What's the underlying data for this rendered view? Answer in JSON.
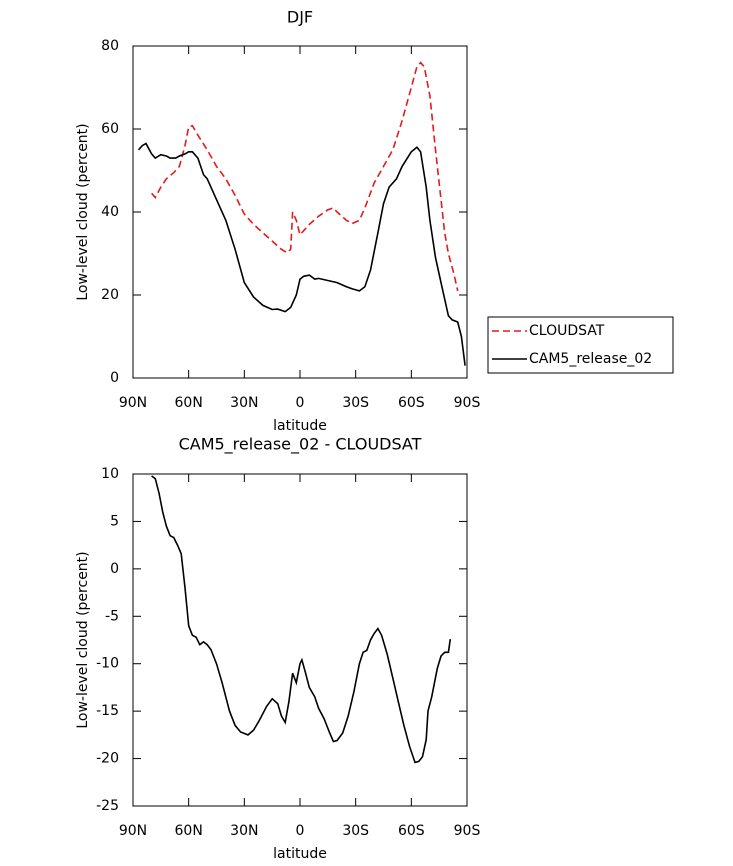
{
  "chart_data": [
    {
      "type": "line",
      "title": "DJF",
      "xlabel": "latitude",
      "ylabel": "Low-level cloud (percent)",
      "xlim": [
        90,
        -90
      ],
      "ylim": [
        0,
        80
      ],
      "xticks": [
        {
          "value": 90,
          "label": "90N"
        },
        {
          "value": 60,
          "label": "60N"
        },
        {
          "value": 30,
          "label": "30N"
        },
        0,
        {
          "value": -30,
          "label": "30S"
        },
        {
          "value": -60,
          "label": "60S"
        },
        {
          "value": -90,
          "label": "90S"
        }
      ],
      "yticks": [
        0,
        20,
        40,
        60,
        80
      ],
      "legend": "right",
      "series": [
        {
          "name": "CLOUDSAT",
          "color": "#e41a1c",
          "dash": "dashed",
          "x": [
            80,
            78,
            75,
            72,
            68,
            65,
            62,
            60,
            58,
            55,
            50,
            45,
            40,
            35,
            30,
            25,
            20,
            15,
            10,
            7,
            5,
            4,
            2,
            0,
            -2,
            -5,
            -10,
            -15,
            -18,
            -20,
            -25,
            -28,
            -32,
            -35,
            -40,
            -45,
            -50,
            -55,
            -60,
            -63,
            -65,
            -67,
            -70,
            -73,
            -76,
            -78,
            -80,
            -83,
            -85
          ],
          "values": [
            44.5,
            43.5,
            46,
            48,
            49.5,
            51,
            56,
            60.5,
            60.8,
            58.5,
            55,
            51,
            48,
            44,
            39.5,
            37,
            35,
            33,
            31,
            30.2,
            31,
            40,
            38,
            34.5,
            35.5,
            37,
            39,
            40.5,
            41,
            40,
            38,
            37.2,
            38,
            41,
            47,
            51,
            55,
            62,
            70,
            75,
            76,
            75,
            68,
            55,
            43,
            35,
            30,
            25,
            21
          ]
        },
        {
          "name": "CAM5_release_02",
          "color": "#000000",
          "dash": "solid",
          "x": [
            87,
            85,
            83,
            80,
            78,
            75,
            72,
            70,
            67,
            65,
            62,
            60,
            58,
            55,
            52,
            50,
            45,
            40,
            35,
            30,
            25,
            20,
            15,
            12,
            8,
            5,
            2,
            0,
            -2,
            -5,
            -8,
            -10,
            -15,
            -20,
            -25,
            -28,
            -32,
            -35,
            -38,
            -42,
            -45,
            -48,
            -52,
            -55,
            -60,
            -63,
            -65,
            -68,
            -70,
            -73,
            -76,
            -80,
            -82,
            -85,
            -87,
            -89
          ],
          "values": [
            55,
            56,
            56.5,
            54,
            53,
            53.8,
            53.5,
            53,
            53,
            53.5,
            54,
            54.5,
            54.5,
            53,
            49,
            48,
            43,
            38,
            31,
            23,
            19.5,
            17.5,
            16.5,
            16.6,
            16,
            17,
            20,
            23.8,
            24.5,
            24.8,
            23.8,
            24,
            23.5,
            23,
            22,
            21.5,
            21,
            22,
            26,
            35,
            42,
            46,
            48,
            51,
            54.5,
            55.6,
            54.5,
            46,
            38,
            29,
            23,
            15,
            14,
            13.5,
            10,
            3
          ]
        }
      ]
    },
    {
      "type": "line",
      "title": "CAM5_release_02 - CLOUDSAT",
      "xlabel": "latitude",
      "ylabel": "Low-level cloud (percent)",
      "xlim": [
        90,
        -90
      ],
      "ylim": [
        -25,
        10
      ],
      "xticks": [
        {
          "value": 90,
          "label": "90N"
        },
        {
          "value": 60,
          "label": "60N"
        },
        {
          "value": 30,
          "label": "30N"
        },
        0,
        {
          "value": -30,
          "label": "30S"
        },
        {
          "value": -60,
          "label": "60S"
        },
        {
          "value": -90,
          "label": "90S"
        }
      ],
      "yticks": [
        -25,
        -20,
        -15,
        -10,
        -5,
        0,
        5,
        10
      ],
      "series": [
        {
          "color": "#000000",
          "dash": "solid",
          "x": [
            80,
            78,
            76,
            74,
            72,
            70,
            68,
            66,
            64,
            62,
            60,
            58,
            56,
            54,
            52,
            50,
            48,
            45,
            42,
            40,
            38,
            35,
            32,
            28,
            25,
            22,
            18,
            15,
            12,
            10,
            8,
            6,
            4,
            2,
            0,
            -1,
            -3,
            -5,
            -8,
            -10,
            -13,
            -16,
            -18,
            -20,
            -23,
            -26,
            -29,
            -32,
            -34,
            -36,
            -38,
            -40,
            -42,
            -44,
            -47,
            -50,
            -53,
            -56,
            -59,
            -62,
            -64,
            -66,
            -68,
            -69,
            -71,
            -74,
            -76,
            -78,
            -80,
            -81
          ],
          "values": [
            9.8,
            9.5,
            8,
            6,
            4.5,
            3.5,
            3.3,
            2.5,
            1.6,
            -2,
            -6,
            -7,
            -7.2,
            -8,
            -7.7,
            -8,
            -8.5,
            -10,
            -12,
            -13.5,
            -15,
            -16.5,
            -17.2,
            -17.5,
            -17,
            -16,
            -14.5,
            -13.7,
            -14.2,
            -15.5,
            -16.2,
            -14,
            -11,
            -12,
            -10,
            -9.6,
            -11,
            -12.5,
            -13.5,
            -14.7,
            -15.8,
            -17.3,
            -18.2,
            -18.1,
            -17.3,
            -15.5,
            -13,
            -10,
            -8.8,
            -8.6,
            -7.5,
            -6.8,
            -6.3,
            -7,
            -9,
            -11.5,
            -14,
            -16.5,
            -18.7,
            -20.4,
            -20.3,
            -19.8,
            -18,
            -15,
            -13.5,
            -10.5,
            -9.2,
            -8.8,
            -8.8,
            -7.4
          ]
        }
      ]
    }
  ]
}
